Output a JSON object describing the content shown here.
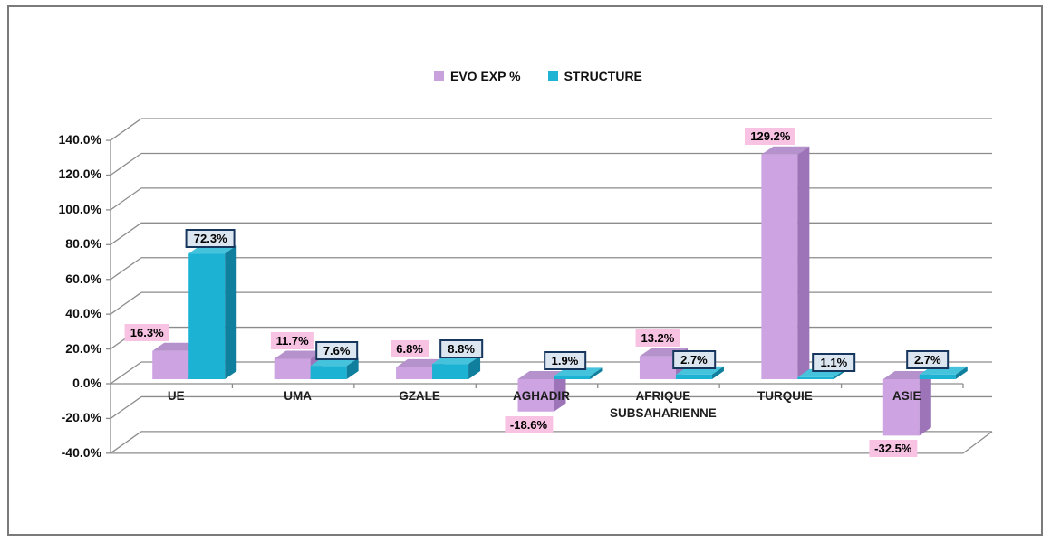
{
  "frame": {
    "border_color": "#7a7a7a",
    "background": "#ffffff"
  },
  "legend": {
    "position": "top-center",
    "items": [
      {
        "label": "EVO EXP %",
        "color": "#c9a1dc"
      },
      {
        "label": "STRUCTURE",
        "color": "#1fb4d4"
      }
    ]
  },
  "chart_data": {
    "type": "bar",
    "style": "3d-clustered-column",
    "title": "",
    "xlabel": "",
    "ylabel": "",
    "categories": [
      "UE",
      "UMA",
      "GZALE",
      "AGHADIR",
      "AFRIQUE SUBSAHARIENNE",
      "TURQUIE",
      "ASIE"
    ],
    "series": [
      {
        "name": "EVO EXP %",
        "values": [
          16.3,
          11.7,
          6.8,
          -18.6,
          13.2,
          129.2,
          -32.5
        ],
        "labels": [
          "16.3%",
          "11.7%",
          "6.8%",
          "-18.6%",
          "13.2%",
          "129.2%",
          "-32.5%"
        ],
        "colors": {
          "front": "#cda4e1",
          "top": "#b692cc",
          "side": "#9c74b7"
        },
        "label_style": {
          "background": "#f8c3e3",
          "border": "none",
          "text_color": "#000000"
        }
      },
      {
        "name": "STRUCTURE",
        "values": [
          72.3,
          7.6,
          8.8,
          1.9,
          2.7,
          1.1,
          2.7
        ],
        "labels": [
          "72.3%",
          "7.6%",
          "8.8%",
          "1.9%",
          "2.7%",
          "1.1%",
          "2.7%"
        ],
        "colors": {
          "front": "#1cb2d4",
          "top": "#45c2dc",
          "side": "#0f7f9d"
        },
        "label_style": {
          "background": "#dce6f1",
          "border": "#17365d",
          "text_color": "#000000"
        }
      }
    ],
    "y_axis": {
      "ticks": [
        "140.0%",
        "120.0%",
        "100.0%",
        "80.0%",
        "60.0%",
        "40.0%",
        "20.0%",
        "0.0%",
        "-20.0%",
        "-40.0%"
      ],
      "tick_values": [
        140,
        120,
        100,
        80,
        60,
        40,
        20,
        0,
        -20,
        -40
      ],
      "min": -40,
      "max": 140,
      "step": 20
    },
    "grid": true,
    "gridline_color": "#8c8c8c",
    "axis_text_color": "#111111",
    "legend_position": "top"
  }
}
